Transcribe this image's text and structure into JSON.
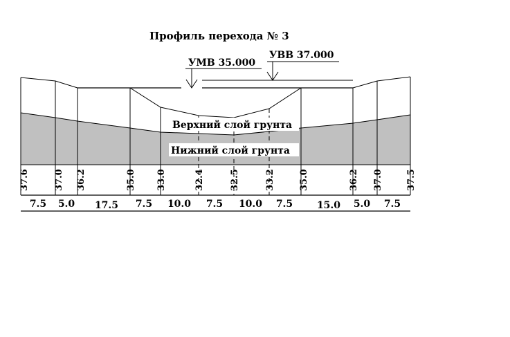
{
  "title": "Профиль перехода № 3",
  "water_levels": {
    "low": "УМВ 35.000",
    "high": "УВВ 37.000"
  },
  "layers": {
    "upper": "Верхний слой грунта",
    "lower": "Нижний слой грунта"
  },
  "elevations": [
    "37.6",
    "37.0",
    "36.2",
    "35.0",
    "33.0",
    "32.4",
    "32.5",
    "33.2",
    "35.0",
    "36.2",
    "37.0",
    "37.5"
  ],
  "distances": [
    "7.5",
    "5.0",
    "17.5",
    "7.5",
    "10.0",
    "7.5",
    "10.0",
    "7.5",
    "15.0",
    "5.0",
    "7.5"
  ],
  "colors": {
    "lower_layer_fill": "#c0c0c0",
    "line": "#000000",
    "background": "#ffffff"
  }
}
